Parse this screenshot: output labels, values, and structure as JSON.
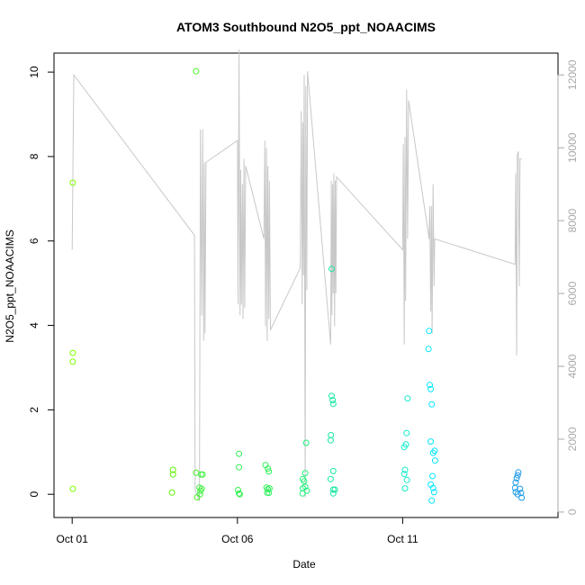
{
  "chart_data": {
    "type": "scatter",
    "title": "ATOM3 Southbound N2O5_ppt_NOAACIMS",
    "xlabel": "Date",
    "ylabel": "N2O5_ppt_NOAACIMS",
    "x_ticks": [
      {
        "value": 1,
        "label": "Oct 01"
      },
      {
        "value": 6,
        "label": "Oct 06"
      },
      {
        "value": 11,
        "label": "Oct 11"
      }
    ],
    "xlim": [
      0.45,
      15.7
    ],
    "ylim": [
      -0.55,
      10.45
    ],
    "y_ticks": [
      0,
      2,
      4,
      6,
      8,
      10
    ],
    "y2lim": [
      -150,
      12600
    ],
    "y2_ticks": [
      0,
      2000,
      4000,
      6000,
      8000,
      10000,
      12000
    ],
    "grid": false,
    "legend": "none",
    "colors": {
      "line": "#c8c8c8",
      "right_axis": "#a9a9a9"
    },
    "points": [
      {
        "x": 1.02,
        "y": 7.38,
        "color": "#7fff00"
      },
      {
        "x": 1.02,
        "y": 3.35,
        "color": "#7fff00"
      },
      {
        "x": 1.02,
        "y": 3.14,
        "color": "#7fff00"
      },
      {
        "x": 1.02,
        "y": 0.13,
        "color": "#7fff00"
      },
      {
        "x": 4.05,
        "y": 0.58,
        "color": "#5ef000"
      },
      {
        "x": 4.05,
        "y": 0.47,
        "color": "#5ef000"
      },
      {
        "x": 4.02,
        "y": 0.04,
        "color": "#5ef000"
      },
      {
        "x": 4.75,
        "y": 10.02,
        "color": "#4cf028"
      },
      {
        "x": 4.75,
        "y": 0.51,
        "color": "#4cf028"
      },
      {
        "x": 4.78,
        "y": -0.07,
        "color": "#4cf028"
      },
      {
        "x": 4.85,
        "y": 0.16,
        "color": "#3ef23e"
      },
      {
        "x": 4.88,
        "y": 0.08,
        "color": "#3ef23e"
      },
      {
        "x": 4.9,
        "y": 0.47,
        "color": "#3ef23e"
      },
      {
        "x": 4.92,
        "y": 0.13,
        "color": "#3ef23e"
      },
      {
        "x": 4.95,
        "y": 0.47,
        "color": "#3ef23e"
      },
      {
        "x": 4.87,
        "y": 0.0,
        "color": "#3ef23e"
      },
      {
        "x": 6.05,
        "y": 0.96,
        "color": "#2ef04e"
      },
      {
        "x": 6.05,
        "y": 0.64,
        "color": "#2ef04e"
      },
      {
        "x": 6.02,
        "y": 0.1,
        "color": "#2ef04e"
      },
      {
        "x": 6.05,
        "y": 0.02,
        "color": "#2ef04e"
      },
      {
        "x": 6.07,
        "y": 0.0,
        "color": "#2ef04e"
      },
      {
        "x": 6.85,
        "y": 0.69,
        "color": "#2ef05a"
      },
      {
        "x": 6.92,
        "y": 0.61,
        "color": "#2ef05a"
      },
      {
        "x": 6.95,
        "y": 0.54,
        "color": "#2ef05a"
      },
      {
        "x": 6.88,
        "y": 0.16,
        "color": "#2ef05a"
      },
      {
        "x": 6.92,
        "y": 0.12,
        "color": "#2ef05a"
      },
      {
        "x": 6.97,
        "y": 0.14,
        "color": "#2ef05a"
      },
      {
        "x": 6.9,
        "y": 0.04,
        "color": "#2ef05a"
      },
      {
        "x": 6.95,
        "y": 0.03,
        "color": "#2ef05a"
      },
      {
        "x": 7.98,
        "y": 0.36,
        "color": "#1ef07a"
      },
      {
        "x": 8.02,
        "y": 0.31,
        "color": "#1ef07a"
      },
      {
        "x": 8.05,
        "y": 0.5,
        "color": "#1ef07a"
      },
      {
        "x": 8.08,
        "y": 1.22,
        "color": "#1ef07a"
      },
      {
        "x": 7.98,
        "y": 0.14,
        "color": "#1ef07a"
      },
      {
        "x": 8.05,
        "y": 0.18,
        "color": "#1ef07a"
      },
      {
        "x": 8.1,
        "y": 0.08,
        "color": "#1ef07a"
      },
      {
        "x": 7.97,
        "y": 0.02,
        "color": "#1ef07a"
      },
      {
        "x": 8.85,
        "y": 5.34,
        "color": "#15e8a0"
      },
      {
        "x": 8.85,
        "y": 2.33,
        "color": "#15e8a0"
      },
      {
        "x": 8.88,
        "y": 2.23,
        "color": "#15e8a0"
      },
      {
        "x": 8.9,
        "y": 2.14,
        "color": "#15e8a0"
      },
      {
        "x": 8.83,
        "y": 1.4,
        "color": "#15e8a0"
      },
      {
        "x": 8.82,
        "y": 1.28,
        "color": "#15e8a0"
      },
      {
        "x": 8.9,
        "y": 0.55,
        "color": "#15e8a0"
      },
      {
        "x": 8.82,
        "y": 0.36,
        "color": "#15e8a0"
      },
      {
        "x": 8.9,
        "y": 0.11,
        "color": "#15e8a0"
      },
      {
        "x": 8.95,
        "y": 0.11,
        "color": "#15e8a0"
      },
      {
        "x": 8.9,
        "y": 0.02,
        "color": "#15e8a0"
      },
      {
        "x": 11.15,
        "y": 2.27,
        "color": "#10eccc"
      },
      {
        "x": 11.12,
        "y": 1.45,
        "color": "#10eccc"
      },
      {
        "x": 11.1,
        "y": 1.18,
        "color": "#10eccc"
      },
      {
        "x": 11.05,
        "y": 1.12,
        "color": "#10eccc"
      },
      {
        "x": 11.07,
        "y": 0.58,
        "color": "#10eccc"
      },
      {
        "x": 11.05,
        "y": 0.48,
        "color": "#10eccc"
      },
      {
        "x": 11.13,
        "y": 0.34,
        "color": "#10eccc"
      },
      {
        "x": 11.07,
        "y": 0.14,
        "color": "#10eccc"
      },
      {
        "x": 11.8,
        "y": 3.87,
        "color": "#00e6ff"
      },
      {
        "x": 11.78,
        "y": 3.44,
        "color": "#00e6ff"
      },
      {
        "x": 11.82,
        "y": 2.59,
        "color": "#00e6ff"
      },
      {
        "x": 11.85,
        "y": 2.49,
        "color": "#00e6ff"
      },
      {
        "x": 11.88,
        "y": 2.13,
        "color": "#00e6ff"
      },
      {
        "x": 11.85,
        "y": 1.25,
        "color": "#00e6ff"
      },
      {
        "x": 11.97,
        "y": 1.03,
        "color": "#00e6ff"
      },
      {
        "x": 11.92,
        "y": 0.98,
        "color": "#00e6ff"
      },
      {
        "x": 11.98,
        "y": 0.8,
        "color": "#00e6ff"
      },
      {
        "x": 11.9,
        "y": 0.43,
        "color": "#00e6ff"
      },
      {
        "x": 11.85,
        "y": 0.23,
        "color": "#00e6ff"
      },
      {
        "x": 11.92,
        "y": 0.15,
        "color": "#00e6ff"
      },
      {
        "x": 11.95,
        "y": 0.05,
        "color": "#00e6ff"
      },
      {
        "x": 11.88,
        "y": -0.15,
        "color": "#00e6ff"
      },
      {
        "x": 14.5,
        "y": 0.52,
        "color": "#1e9be8"
      },
      {
        "x": 14.48,
        "y": 0.45,
        "color": "#1e9be8"
      },
      {
        "x": 14.45,
        "y": 0.38,
        "color": "#1e9be8"
      },
      {
        "x": 14.42,
        "y": 0.28,
        "color": "#1e9be8"
      },
      {
        "x": 14.4,
        "y": 0.15,
        "color": "#1e9be8"
      },
      {
        "x": 14.42,
        "y": 0.05,
        "color": "#1e9be8"
      },
      {
        "x": 14.55,
        "y": 0.13,
        "color": "#1e9be8"
      },
      {
        "x": 14.58,
        "y": 0.03,
        "color": "#1e9be8"
      },
      {
        "x": 14.6,
        "y": -0.08,
        "color": "#1e9be8"
      },
      {
        "x": 14.48,
        "y": 0.0,
        "color": "#1e9be8"
      }
    ],
    "line_series": {
      "axis": "right",
      "x": [
        1.0,
        1.05,
        4.7,
        4.72,
        4.85,
        4.88,
        4.92,
        4.95,
        4.98,
        5.0,
        5.02,
        5.05,
        6.0,
        6.02,
        6.05,
        6.08,
        6.1,
        6.12,
        6.15,
        6.17,
        6.2,
        6.22,
        6.25,
        6.8,
        6.83,
        6.85,
        6.88,
        6.9,
        6.92,
        6.95,
        6.97,
        7.0,
        7.9,
        7.93,
        7.96,
        7.98,
        8.0,
        8.02,
        8.05,
        8.07,
        8.1,
        8.12,
        8.82,
        8.84,
        8.86,
        8.88,
        8.9,
        8.92,
        8.94,
        8.96,
        8.98,
        9.0,
        11.0,
        11.02,
        11.05,
        11.07,
        11.09,
        11.12,
        11.15,
        11.18,
        11.8,
        11.82,
        11.85,
        11.87,
        11.89,
        11.92,
        11.95,
        11.97,
        14.4,
        14.42,
        14.45,
        14.47,
        14.5,
        14.53,
        14.55,
        14.6
      ],
      "y": [
        7200,
        12000,
        7600,
        600,
        300,
        10500,
        5400,
        10500,
        4700,
        9600,
        4900,
        9600,
        10200,
        5700,
        12700,
        5400,
        9400,
        5700,
        9000,
        5300,
        9700,
        5600,
        9500,
        7500,
        10200,
        5100,
        10000,
        4700,
        9500,
        5300,
        9100,
        5000,
        6700,
        11000,
        5700,
        10700,
        6500,
        12000,
        400,
        11700,
        6100,
        12100,
        4600,
        9100,
        5400,
        9000,
        6000,
        9300,
        5100,
        9100,
        6000,
        9200,
        7200,
        10100,
        4600,
        10300,
        5800,
        11600,
        7500,
        11300,
        7500,
        8400,
        5500,
        8400,
        4900,
        9000,
        6200,
        7500,
        6800,
        9300,
        4300,
        9800,
        9900,
        6200,
        9700,
        9700
      ]
    }
  }
}
